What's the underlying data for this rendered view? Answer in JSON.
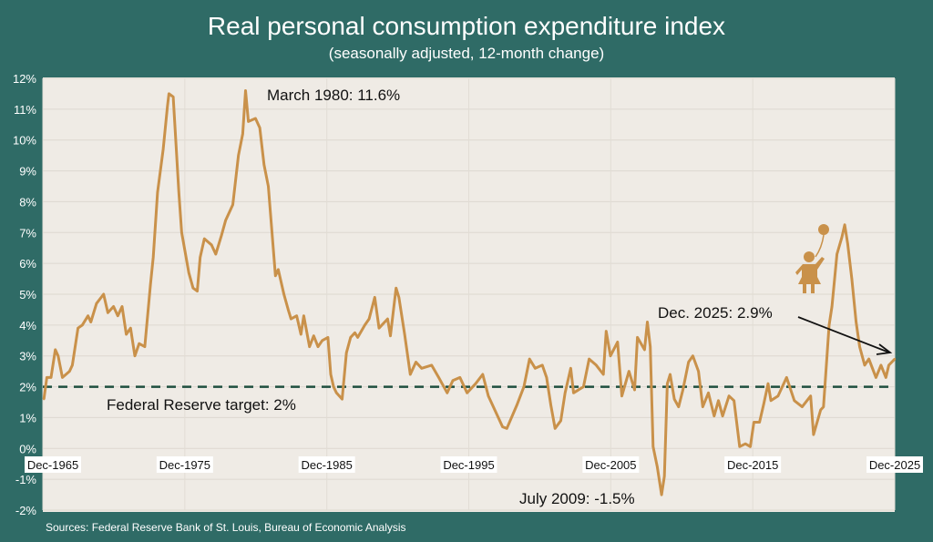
{
  "chart_data": {
    "type": "line",
    "title": "Real personal consumption expenditure index",
    "subtitle": "(seasonally adjusted, 12-month change)",
    "xlabel": "",
    "ylabel": "",
    "xlim": [
      1965.92,
      2025.92
    ],
    "ylim": [
      -2,
      12
    ],
    "grid": true,
    "legend": "none",
    "x_tick_labels": [
      "Dec-1965",
      "Dec-1975",
      "Dec-1985",
      "Dec-1995",
      "Dec-2005",
      "Dec-2015",
      "Dec-2025"
    ],
    "x_tick_years": [
      1965.92,
      1975.92,
      1985.92,
      1995.92,
      2005.92,
      2015.92,
      2025.92
    ],
    "y_ticks": [
      12,
      11,
      10,
      9,
      8,
      7,
      6,
      5,
      4,
      3,
      2,
      1,
      0,
      -1,
      -2
    ],
    "y_tick_labels": [
      "12%",
      "11%",
      "10%",
      "9%",
      "8%",
      "7%",
      "6%",
      "5%",
      "4%",
      "3%",
      "2%",
      "1%",
      "0%",
      "-1%",
      "-2%"
    ],
    "reference_line": {
      "value": 2,
      "label": "Federal Reserve target: 2%",
      "color": "#1f4f3f"
    },
    "series_color": "#c9914a",
    "series": [
      {
        "x": [
          1966.0,
          1966.2,
          1966.5,
          1966.8,
          1967.0,
          1967.3,
          1967.8,
          1968.0,
          1968.4,
          1968.7,
          1969.1,
          1969.3,
          1969.7,
          1970.2,
          1970.5,
          1970.9,
          1971.2,
          1971.5,
          1971.8,
          1972.1,
          1972.4,
          1972.7,
          1973.1,
          1973.5,
          1973.7,
          1974.0,
          1974.4,
          1974.7,
          1974.8,
          1975.1,
          1975.5,
          1975.7,
          1976.2,
          1976.5,
          1976.8,
          1977.0,
          1977.3,
          1977.8,
          1978.1,
          1978.5,
          1978.8,
          1979.3,
          1979.7,
          1980.0,
          1980.2,
          1980.4,
          1980.9,
          1981.2,
          1981.5,
          1981.8,
          1982.3,
          1982.5,
          1982.9,
          1983.2,
          1983.4,
          1983.8,
          1984.1,
          1984.3,
          1984.7,
          1985.0,
          1985.3,
          1985.6,
          1986.0,
          1986.2,
          1986.4,
          1986.6,
          1987.0,
          1987.3,
          1987.6,
          1987.9,
          1988.1,
          1988.6,
          1988.9,
          1989.3,
          1989.6,
          1990.2,
          1990.4,
          1990.8,
          1991.0,
          1991.4,
          1991.8,
          1992.2,
          1992.6,
          1993.3,
          1993.8,
          1994.4,
          1994.8,
          1995.3,
          1995.8,
          1996.4,
          1996.9,
          1997.3,
          1998.0,
          1998.3,
          1998.6,
          1999.3,
          1999.8,
          2000.2,
          2000.6,
          2001.1,
          2001.4,
          2001.7,
          2002.0,
          2002.4,
          2002.7,
          2003.1,
          2003.3,
          2004.0,
          2004.4,
          2004.9,
          2005.4,
          2005.6,
          2005.9,
          2006.4,
          2006.7,
          2007.2,
          2007.6,
          2007.8,
          2008.3,
          2008.5,
          2008.7,
          2008.9,
          2009.2,
          2009.5,
          2009.7,
          2009.9,
          2010.1,
          2010.4,
          2010.7,
          2011.0,
          2011.4,
          2011.7,
          2012.1,
          2012.4,
          2012.8,
          2013.2,
          2013.5,
          2013.8,
          2014.25,
          2014.6,
          2015.0,
          2015.4,
          2015.75,
          2016.0,
          2016.4,
          2016.7,
          2017.0,
          2017.2,
          2017.7,
          2018.3,
          2018.85,
          2019.4,
          2020.0,
          2020.2,
          2020.7,
          2020.9,
          2021.3,
          2021.5,
          2021.85,
          2022.2,
          2022.4,
          2022.6,
          2022.9,
          2023.2,
          2023.45,
          2023.8,
          2024.1,
          2024.6,
          2024.95,
          2025.3,
          2025.5,
          2025.92
        ],
        "y": [
          1.6,
          2.3,
          2.3,
          3.2,
          3.0,
          2.3,
          2.5,
          2.7,
          3.9,
          4.0,
          4.3,
          4.1,
          4.7,
          5.0,
          4.4,
          4.6,
          4.3,
          4.6,
          3.7,
          3.9,
          3.0,
          3.4,
          3.3,
          5.3,
          6.2,
          8.3,
          9.7,
          11.1,
          11.5,
          11.4,
          8.3,
          7.0,
          5.7,
          5.2,
          5.1,
          6.2,
          6.8,
          6.6,
          6.3,
          6.9,
          7.4,
          7.9,
          9.5,
          10.2,
          11.6,
          10.6,
          10.7,
          10.4,
          9.2,
          8.5,
          5.6,
          5.8,
          5.0,
          4.5,
          4.2,
          4.3,
          3.7,
          4.3,
          3.3,
          3.65,
          3.3,
          3.5,
          3.6,
          2.4,
          2.0,
          1.8,
          1.6,
          3.1,
          3.6,
          3.75,
          3.6,
          4.0,
          4.2,
          4.9,
          3.9,
          4.2,
          3.65,
          5.2,
          4.9,
          3.7,
          2.4,
          2.8,
          2.6,
          2.7,
          2.3,
          1.8,
          2.2,
          2.3,
          1.8,
          2.1,
          2.4,
          1.7,
          1.0,
          0.7,
          0.65,
          1.4,
          2.0,
          2.9,
          2.6,
          2.7,
          2.3,
          1.4,
          0.65,
          0.9,
          1.8,
          2.6,
          1.8,
          2.0,
          2.9,
          2.7,
          2.4,
          3.8,
          3.0,
          3.45,
          1.7,
          2.5,
          1.9,
          3.6,
          3.2,
          4.1,
          3.3,
          0.06,
          -0.6,
          -1.5,
          -0.9,
          2.1,
          2.4,
          1.6,
          1.35,
          1.9,
          2.8,
          3.0,
          2.5,
          1.35,
          1.8,
          1.05,
          1.55,
          1.05,
          1.7,
          1.55,
          0.06,
          0.15,
          0.06,
          0.85,
          0.85,
          1.45,
          2.1,
          1.55,
          1.7,
          2.3,
          1.55,
          1.35,
          1.7,
          0.45,
          1.25,
          1.35,
          4.0,
          4.6,
          6.3,
          6.85,
          7.25,
          6.65,
          5.5,
          4.1,
          3.3,
          2.7,
          2.9,
          2.3,
          2.7,
          2.3,
          2.7,
          2.9
        ]
      }
    ],
    "annotations": [
      {
        "text": "March 1980: 11.6%",
        "x": 1980.2,
        "y": 11.6
      },
      {
        "text": "Dec. 2025: 2.9%",
        "x": 2025.92,
        "y": 2.9,
        "arrow": true
      },
      {
        "text": "July 2009: -1.5%",
        "x": 2009.5,
        "y": -1.5
      }
    ]
  },
  "source": "Sources: Federal Reserve Bank of St. Louis, Bureau of Economic Analysis",
  "colors": {
    "frame": "#2f6b66",
    "plot_bg": "#efebe5",
    "grid": "#ddd8d0",
    "text_light": "#ffffff",
    "text_dark": "#111111"
  },
  "icons": [
    "child-with-balloon-icon"
  ]
}
